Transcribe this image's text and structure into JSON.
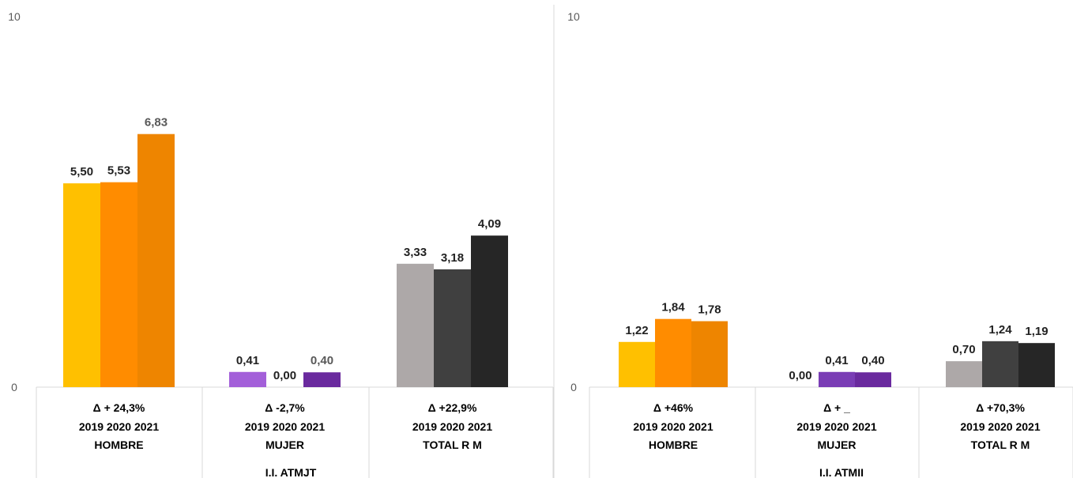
{
  "chart_data": [
    {
      "type": "bar",
      "ylim": [
        0,
        10
      ],
      "yticks": [
        0,
        10
      ],
      "group_title": "I.I. ATMJT",
      "groups": [
        {
          "delta": "Δ + 24,3%",
          "years": "2019 2020 2021",
          "name": "HOMBRE",
          "values": [
            5.5,
            5.53,
            6.83
          ],
          "labels": [
            "5,50",
            "5,53",
            "6,83"
          ],
          "colors": [
            "#FFC000",
            "#FF8C00",
            "#EE8500"
          ],
          "label_grey": [
            false,
            false,
            true
          ]
        },
        {
          "delta": "Δ  -2,7%",
          "years": "2019 2020 2021",
          "name": "MUJER",
          "values": [
            0.41,
            0.0,
            0.4
          ],
          "labels": [
            "0,41",
            "0,00",
            "0,40"
          ],
          "colors": [
            "#A35FD9",
            "#7A3DB5",
            "#6A2A9E"
          ],
          "label_grey": [
            false,
            false,
            true
          ]
        },
        {
          "delta": "Δ +22,9%",
          "years": "2019 2020 2021",
          "name": "TOTAL R M",
          "values": [
            3.33,
            3.18,
            4.09
          ],
          "labels": [
            "3,33",
            "3,18",
            "4,09"
          ],
          "colors": [
            "#ADA8A8",
            "#404040",
            "#262626"
          ],
          "label_grey": [
            false,
            false,
            false
          ]
        }
      ]
    },
    {
      "type": "bar",
      "ylim": [
        0,
        10
      ],
      "yticks": [
        0,
        10
      ],
      "group_title": "I.I. ATMII",
      "groups": [
        {
          "delta": "Δ +46%",
          "years": "2019 2020 2021",
          "name": "HOMBRE",
          "values": [
            1.22,
            1.84,
            1.78
          ],
          "labels": [
            "1,22",
            "1,84",
            "1,78"
          ],
          "colors": [
            "#FFC000",
            "#FF8C00",
            "#EE8500"
          ],
          "label_grey": [
            false,
            false,
            false
          ]
        },
        {
          "delta": "Δ + _",
          "years": "2019 2020 2021",
          "name": "MUJER",
          "values": [
            0.0,
            0.41,
            0.4
          ],
          "labels": [
            "0,00",
            "0,41",
            "0,40"
          ],
          "colors": [
            "#A35FD9",
            "#7A3DB5",
            "#6A2A9E"
          ],
          "label_grey": [
            false,
            false,
            false
          ]
        },
        {
          "delta": "Δ +70,3%",
          "years": "2019 2020 2021",
          "name": "TOTAL R M",
          "values": [
            0.7,
            1.24,
            1.19
          ],
          "labels": [
            "0,70",
            "1,24",
            "1,19"
          ],
          "colors": [
            "#ADA8A8",
            "#404040",
            "#262626"
          ],
          "label_grey": [
            false,
            false,
            false
          ]
        }
      ]
    }
  ]
}
